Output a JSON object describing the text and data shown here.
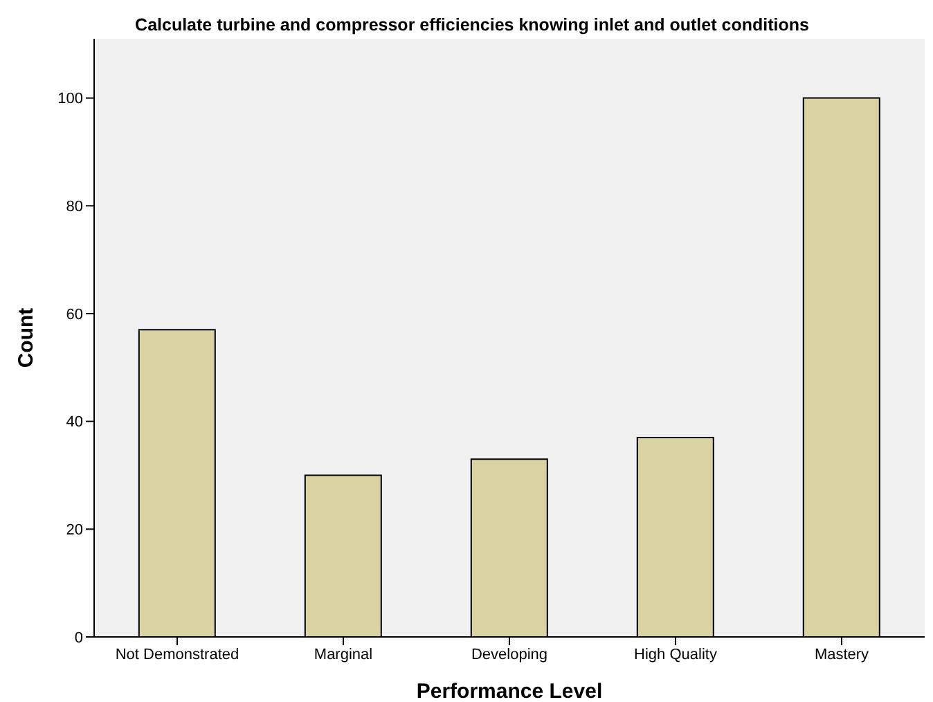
{
  "chart_data": {
    "type": "bar",
    "title": "Calculate turbine and compressor efficiencies knowing inlet and outlet conditions",
    "xlabel": "Performance Level",
    "ylabel": "Count",
    "categories": [
      "Not Demonstrated",
      "Marginal",
      "Developing",
      "High Quality",
      "Mastery"
    ],
    "values": [
      57,
      30,
      33,
      37,
      100
    ],
    "color": "#d9d3a1",
    "ylim": [
      0,
      111
    ],
    "yticks": [
      0,
      20,
      40,
      60,
      80,
      100
    ],
    "grid": false
  }
}
